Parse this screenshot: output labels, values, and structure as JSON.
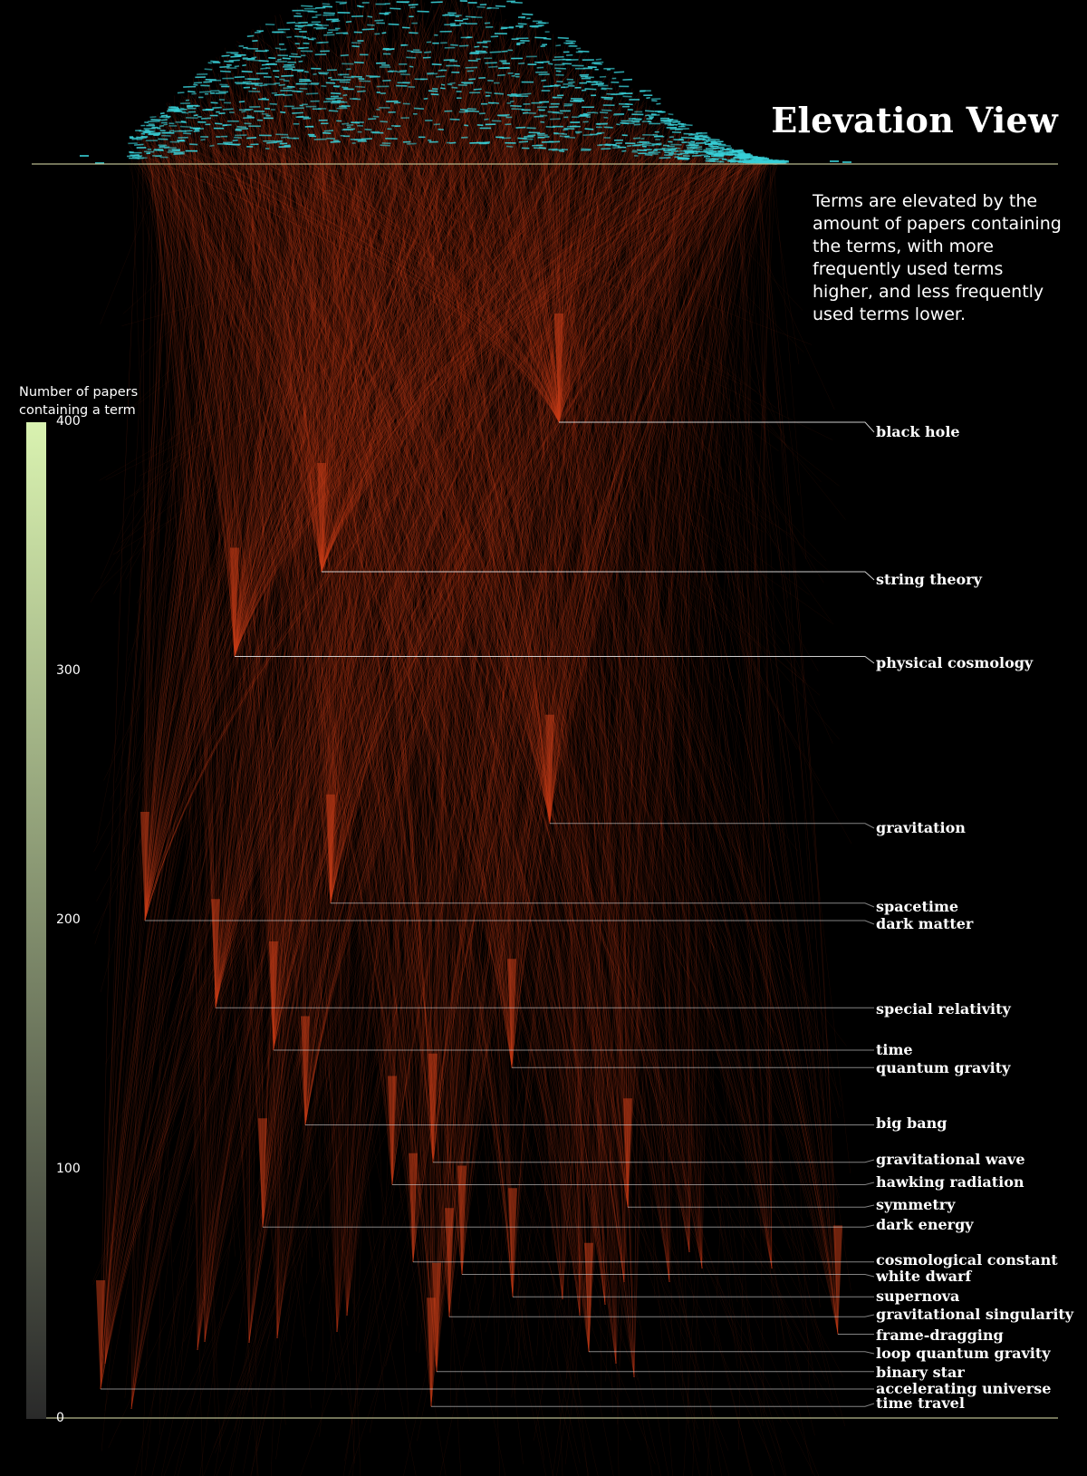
{
  "title": "Elevation View",
  "description": "Terms are elevated by the amount of papers containing the terms, with more frequently used terms higher, and less frequently used terms lower.",
  "legend": {
    "title_line1": "Number of papers",
    "title_line2": "containing a term",
    "color_low": "#2a2a2a",
    "color_high": "#d9f2b0"
  },
  "colors": {
    "strand": "#e0451c",
    "cap": "#38d0d8",
    "baseline": "#b6b88c",
    "leader": "#d8d8d8"
  },
  "chart_data": {
    "type": "scatter",
    "ylabel": "Number of papers containing a term",
    "ylim": [
      0,
      400
    ],
    "yticks": [
      "400",
      "300",
      "200",
      "100",
      "0"
    ],
    "grid": false,
    "terms": [
      {
        "name": "black hole",
        "papers": 400
      },
      {
        "name": "string theory",
        "papers": 340
      },
      {
        "name": "physical cosmology",
        "papers": 306
      },
      {
        "name": "gravitation",
        "papers": 239
      },
      {
        "name": "spacetime",
        "papers": 207
      },
      {
        "name": "dark matter",
        "papers": 200
      },
      {
        "name": "special relativity",
        "papers": 165
      },
      {
        "name": "time",
        "papers": 148
      },
      {
        "name": "quantum gravity",
        "papers": 141
      },
      {
        "name": "big bang",
        "papers": 118
      },
      {
        "name": "gravitational wave",
        "papers": 103
      },
      {
        "name": "hawking radiation",
        "papers": 94
      },
      {
        "name": "symmetry",
        "papers": 85
      },
      {
        "name": "dark energy",
        "papers": 77
      },
      {
        "name": "cosmological constant",
        "papers": 63
      },
      {
        "name": "white dwarf",
        "papers": 58
      },
      {
        "name": "supernova",
        "papers": 49
      },
      {
        "name": "gravitational singularity",
        "papers": 41
      },
      {
        "name": "frame-dragging",
        "papers": 34
      },
      {
        "name": "loop quantum gravity",
        "papers": 27
      },
      {
        "name": "binary star",
        "papers": 19
      },
      {
        "name": "accelerating universe",
        "papers": 12
      },
      {
        "name": "time travel",
        "papers": 5
      }
    ]
  }
}
